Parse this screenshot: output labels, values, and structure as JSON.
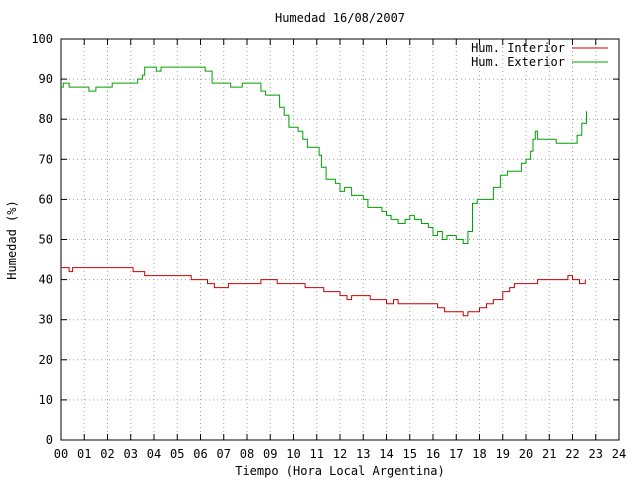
{
  "chart_data": {
    "type": "line",
    "title": "Humedad 16/08/2007",
    "xlabel": "Tiempo (Hora Local Argentina)",
    "ylabel": "Humedad (%)",
    "xlim": [
      0,
      24
    ],
    "ylim": [
      0,
      100
    ],
    "grid": true,
    "legend_position": "top-right",
    "x_ticks": [
      "00",
      "01",
      "02",
      "03",
      "04",
      "05",
      "06",
      "07",
      "08",
      "09",
      "10",
      "11",
      "12",
      "13",
      "14",
      "15",
      "16",
      "17",
      "18",
      "19",
      "20",
      "21",
      "22",
      "23",
      "24"
    ],
    "y_ticks": [
      "0",
      "10",
      "20",
      "30",
      "40",
      "50",
      "60",
      "70",
      "80",
      "90",
      "100"
    ],
    "series": [
      {
        "name": "Hum. Interior",
        "color": "#cc0000",
        "points": [
          [
            0.0,
            43
          ],
          [
            0.3,
            43
          ],
          [
            0.35,
            42
          ],
          [
            0.5,
            43
          ],
          [
            1.0,
            43
          ],
          [
            1.5,
            43
          ],
          [
            2.0,
            43
          ],
          [
            2.5,
            43
          ],
          [
            3.0,
            43
          ],
          [
            3.1,
            42
          ],
          [
            3.5,
            42
          ],
          [
            3.6,
            41
          ],
          [
            4.0,
            41
          ],
          [
            4.5,
            41
          ],
          [
            5.0,
            41
          ],
          [
            5.5,
            41
          ],
          [
            5.6,
            40
          ],
          [
            6.0,
            40
          ],
          [
            6.3,
            39
          ],
          [
            6.6,
            38
          ],
          [
            7.0,
            38
          ],
          [
            7.2,
            39
          ],
          [
            7.5,
            39
          ],
          [
            8.0,
            39
          ],
          [
            8.5,
            39
          ],
          [
            8.6,
            40
          ],
          [
            9.0,
            40
          ],
          [
            9.3,
            39
          ],
          [
            9.5,
            39
          ],
          [
            10.0,
            39
          ],
          [
            10.5,
            38
          ],
          [
            11.0,
            38
          ],
          [
            11.3,
            37
          ],
          [
            11.8,
            37
          ],
          [
            12.0,
            36
          ],
          [
            12.3,
            35
          ],
          [
            12.5,
            36
          ],
          [
            12.8,
            36
          ],
          [
            13.0,
            36
          ],
          [
            13.3,
            35
          ],
          [
            13.7,
            35
          ],
          [
            14.0,
            34
          ],
          [
            14.3,
            35
          ],
          [
            14.5,
            34
          ],
          [
            14.8,
            34
          ],
          [
            15.0,
            34
          ],
          [
            15.5,
            34
          ],
          [
            16.0,
            34
          ],
          [
            16.2,
            33
          ],
          [
            16.5,
            32
          ],
          [
            17.0,
            32
          ],
          [
            17.3,
            31
          ],
          [
            17.5,
            32
          ],
          [
            18.0,
            33
          ],
          [
            18.3,
            34
          ],
          [
            18.6,
            35
          ],
          [
            19.0,
            37
          ],
          [
            19.3,
            38
          ],
          [
            19.5,
            39
          ],
          [
            20.0,
            39
          ],
          [
            20.5,
            40
          ],
          [
            21.0,
            40
          ],
          [
            21.5,
            40
          ],
          [
            21.8,
            41
          ],
          [
            22.0,
            40
          ],
          [
            22.2,
            40
          ],
          [
            22.3,
            39
          ],
          [
            22.5,
            39
          ],
          [
            22.55,
            40
          ]
        ]
      },
      {
        "name": "Hum. Exterior",
        "color": "#00a000",
        "points": [
          [
            0.0,
            88
          ],
          [
            0.1,
            89
          ],
          [
            0.3,
            89
          ],
          [
            0.35,
            88
          ],
          [
            0.8,
            88
          ],
          [
            1.0,
            88
          ],
          [
            1.2,
            87
          ],
          [
            1.4,
            87
          ],
          [
            1.5,
            88
          ],
          [
            2.0,
            88
          ],
          [
            2.2,
            89
          ],
          [
            2.8,
            89
          ],
          [
            3.2,
            89
          ],
          [
            3.3,
            90
          ],
          [
            3.5,
            91
          ],
          [
            3.6,
            93
          ],
          [
            4.0,
            93
          ],
          [
            4.1,
            92
          ],
          [
            4.3,
            93
          ],
          [
            5.0,
            93
          ],
          [
            5.5,
            93
          ],
          [
            6.0,
            93
          ],
          [
            6.2,
            92
          ],
          [
            6.5,
            89
          ],
          [
            7.0,
            89
          ],
          [
            7.3,
            88
          ],
          [
            7.8,
            89
          ],
          [
            8.0,
            89
          ],
          [
            8.4,
            89
          ],
          [
            8.6,
            87
          ],
          [
            8.8,
            86
          ],
          [
            9.0,
            86
          ],
          [
            9.2,
            86
          ],
          [
            9.4,
            83
          ],
          [
            9.6,
            81
          ],
          [
            9.8,
            78
          ],
          [
            10.0,
            78
          ],
          [
            10.2,
            77
          ],
          [
            10.4,
            75
          ],
          [
            10.6,
            73
          ],
          [
            10.8,
            73
          ],
          [
            11.0,
            73
          ],
          [
            11.1,
            71
          ],
          [
            11.2,
            68
          ],
          [
            11.4,
            65
          ],
          [
            11.6,
            65
          ],
          [
            11.8,
            64
          ],
          [
            12.0,
            62
          ],
          [
            12.2,
            63
          ],
          [
            12.5,
            61
          ],
          [
            12.8,
            61
          ],
          [
            13.0,
            60
          ],
          [
            13.2,
            58
          ],
          [
            13.5,
            58
          ],
          [
            13.8,
            57
          ],
          [
            14.0,
            56
          ],
          [
            14.2,
            55
          ],
          [
            14.5,
            54
          ],
          [
            14.8,
            55
          ],
          [
            15.0,
            56
          ],
          [
            15.2,
            55
          ],
          [
            15.5,
            54
          ],
          [
            15.8,
            53
          ],
          [
            16.0,
            51
          ],
          [
            16.2,
            52
          ],
          [
            16.4,
            50
          ],
          [
            16.6,
            51
          ],
          [
            17.0,
            50
          ],
          [
            17.2,
            50
          ],
          [
            17.3,
            49
          ],
          [
            17.5,
            52
          ],
          [
            17.7,
            59
          ],
          [
            17.9,
            60
          ],
          [
            18.3,
            60
          ],
          [
            18.6,
            63
          ],
          [
            18.9,
            66
          ],
          [
            19.2,
            67
          ],
          [
            19.5,
            67
          ],
          [
            19.8,
            69
          ],
          [
            20.0,
            70
          ],
          [
            20.2,
            72
          ],
          [
            20.3,
            75
          ],
          [
            20.4,
            77
          ],
          [
            20.5,
            75
          ],
          [
            21.0,
            75
          ],
          [
            21.3,
            74
          ],
          [
            21.6,
            74
          ],
          [
            22.0,
            74
          ],
          [
            22.2,
            76
          ],
          [
            22.4,
            79
          ],
          [
            22.6,
            82
          ]
        ]
      }
    ]
  }
}
